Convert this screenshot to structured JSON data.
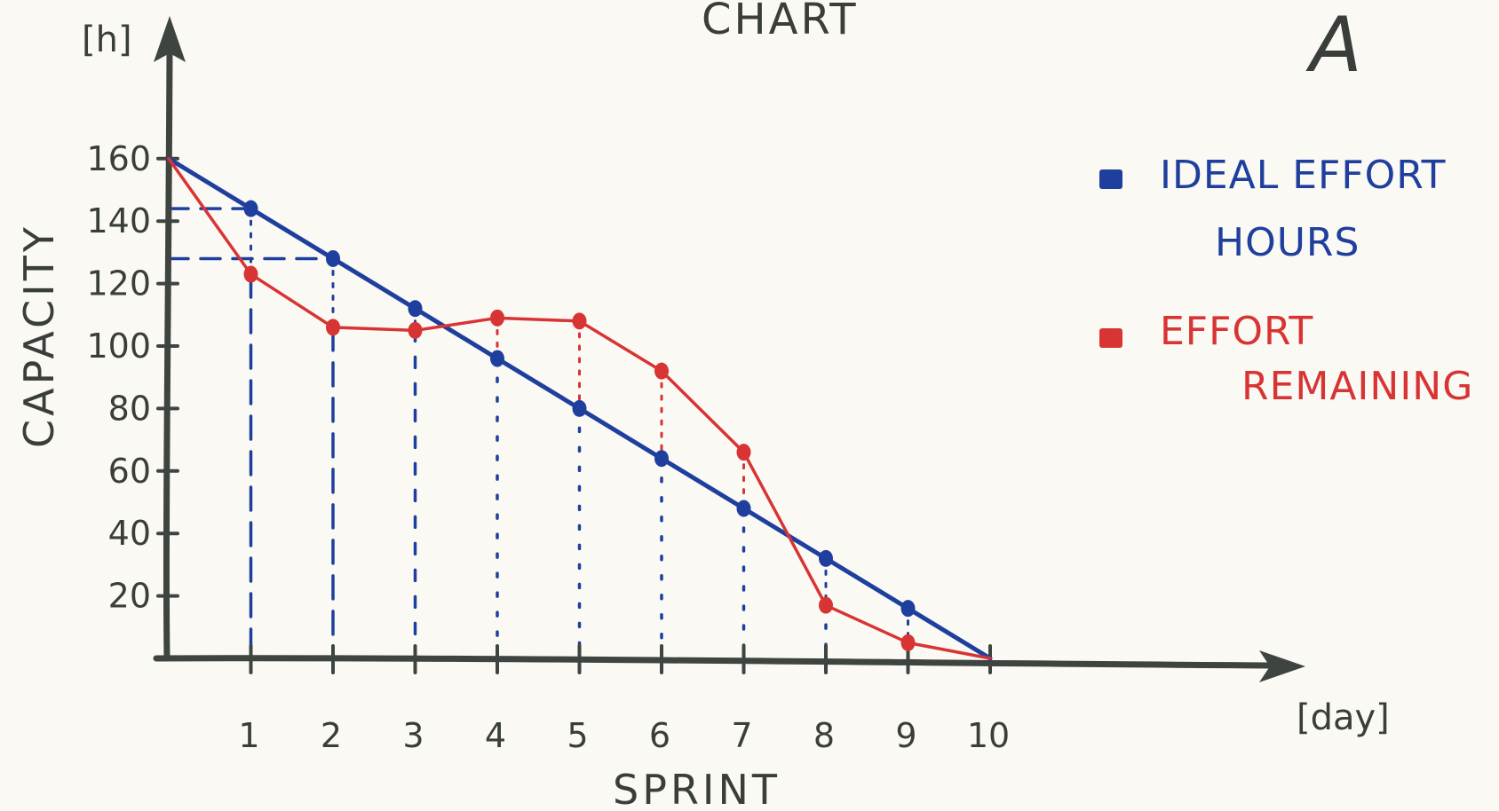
{
  "title": "CHART",
  "corner_letter": "A",
  "colors": {
    "ideal": "#1f3f9e",
    "remaining": "#d83434",
    "axis": "#3e4540"
  },
  "chart_data": {
    "type": "line",
    "xlabel": "SPRINT",
    "ylabel": "CAPACITY",
    "x_unit": "[day]",
    "y_unit": "[h]",
    "xlim": [
      0,
      10
    ],
    "ylim": [
      0,
      160
    ],
    "x_ticks": [
      1,
      2,
      3,
      4,
      5,
      6,
      7,
      8,
      9,
      10
    ],
    "y_ticks": [
      20,
      40,
      60,
      80,
      100,
      120,
      140,
      160
    ],
    "grid": false,
    "legend_position": "top-right",
    "x": [
      0,
      1,
      2,
      3,
      4,
      5,
      6,
      7,
      8,
      9,
      10
    ],
    "series": [
      {
        "name": "IDEAL EFFORT HOURS",
        "color_key": "ideal",
        "values": [
          160,
          144,
          128,
          112,
          96,
          80,
          64,
          48,
          32,
          16,
          0
        ]
      },
      {
        "name": "EFFORT REMAINING",
        "color_key": "remaining",
        "values": [
          160,
          123,
          106,
          105,
          109,
          108,
          92,
          66,
          17,
          5,
          0
        ]
      }
    ]
  }
}
